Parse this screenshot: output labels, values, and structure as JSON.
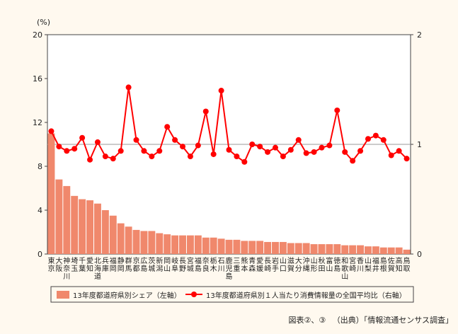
{
  "chart_data": {
    "type": "bar+line",
    "categories": [
      [
        "東",
        "京"
      ],
      [
        "大",
        "阪"
      ],
      [
        "神",
        "奈",
        "川"
      ],
      [
        "埼",
        "玉"
      ],
      [
        "千",
        "葉"
      ],
      [
        "愛",
        "知"
      ],
      [
        "北",
        "海",
        "道"
      ],
      [
        "兵",
        "庫"
      ],
      [
        "福",
        "岡"
      ],
      [
        "静",
        "岡"
      ],
      [
        "群",
        "馬"
      ],
      [
        "京",
        "都"
      ],
      [
        "広",
        "島"
      ],
      [
        "茨",
        "城"
      ],
      [
        "新",
        "潟"
      ],
      [
        "岡",
        "山"
      ],
      [
        "岐",
        "阜"
      ],
      [
        "長",
        "野"
      ],
      [
        "宮",
        "城"
      ],
      [
        "福",
        "島"
      ],
      [
        "奈",
        "良"
      ],
      [
        "栃",
        "木"
      ],
      [
        "石",
        "川"
      ],
      [
        "鹿",
        "児",
        "島"
      ],
      [
        "三",
        "重"
      ],
      [
        "熊",
        "本"
      ],
      [
        "青",
        "森"
      ],
      [
        "愛",
        "媛"
      ],
      [
        "長",
        "崎"
      ],
      [
        "岩",
        "手"
      ],
      [
        "山",
        "口"
      ],
      [
        "滋",
        "賀"
      ],
      [
        "大",
        "分"
      ],
      [
        "沖",
        "縄"
      ],
      [
        "山",
        "形"
      ],
      [
        "秋",
        "田"
      ],
      [
        "富",
        "山"
      ],
      [
        "徳",
        "島"
      ],
      [
        "和",
        "歌",
        "山"
      ],
      [
        "宮",
        "崎"
      ],
      [
        "香",
        "川"
      ],
      [
        "山",
        "梨"
      ],
      [
        "福",
        "井"
      ],
      [
        "島",
        "根"
      ],
      [
        "佐",
        "賀"
      ],
      [
        "高",
        "知"
      ],
      [
        "鳥",
        "取"
      ]
    ],
    "series": [
      {
        "name": "13年度都道府県別シェア（左軸）",
        "type": "bar",
        "axis": "left",
        "color": "#f0886c",
        "values": [
          11.0,
          6.8,
          6.2,
          5.3,
          5.0,
          4.9,
          4.6,
          4.0,
          3.5,
          2.8,
          2.5,
          2.2,
          2.1,
          2.1,
          1.9,
          1.8,
          1.7,
          1.7,
          1.7,
          1.7,
          1.5,
          1.5,
          1.4,
          1.3,
          1.3,
          1.2,
          1.2,
          1.2,
          1.1,
          1.1,
          1.1,
          1.0,
          1.0,
          1.0,
          0.9,
          0.9,
          0.9,
          0.9,
          0.8,
          0.8,
          0.8,
          0.7,
          0.7,
          0.6,
          0.6,
          0.6,
          0.4
        ]
      },
      {
        "name": "13年度都道府県別１人当たり消費情報量の全国平均比（右軸）",
        "type": "line",
        "axis": "right",
        "color": "#ff0000",
        "values": [
          1.12,
          0.98,
          0.94,
          0.96,
          1.06,
          0.86,
          1.02,
          0.89,
          0.87,
          0.94,
          1.52,
          1.04,
          0.94,
          0.89,
          0.94,
          1.16,
          1.04,
          0.98,
          0.89,
          0.99,
          1.3,
          0.91,
          1.49,
          0.95,
          0.89,
          0.84,
          1.0,
          0.98,
          0.93,
          0.97,
          0.89,
          0.95,
          1.04,
          0.92,
          0.93,
          0.97,
          0.99,
          1.31,
          0.93,
          0.85,
          0.94,
          1.05,
          1.08,
          1.04,
          0.9,
          0.94,
          0.87
        ]
      }
    ],
    "left_axis": {
      "unit": "(%)",
      "ylim": [
        0,
        20
      ],
      "ticks": [
        0,
        4,
        8,
        12,
        16,
        20
      ]
    },
    "right_axis": {
      "ylim": [
        0,
        2
      ],
      "ticks": [
        0,
        1,
        2
      ]
    },
    "reference_line": 1,
    "colors": {
      "background": "#fff9ef",
      "bar": "#f0886c",
      "line": "#ff0000",
      "reference": "#999999"
    }
  },
  "caption": {
    "figure_ref": "図表②、③",
    "source": "（出典）「情報流通センサス調査」"
  }
}
